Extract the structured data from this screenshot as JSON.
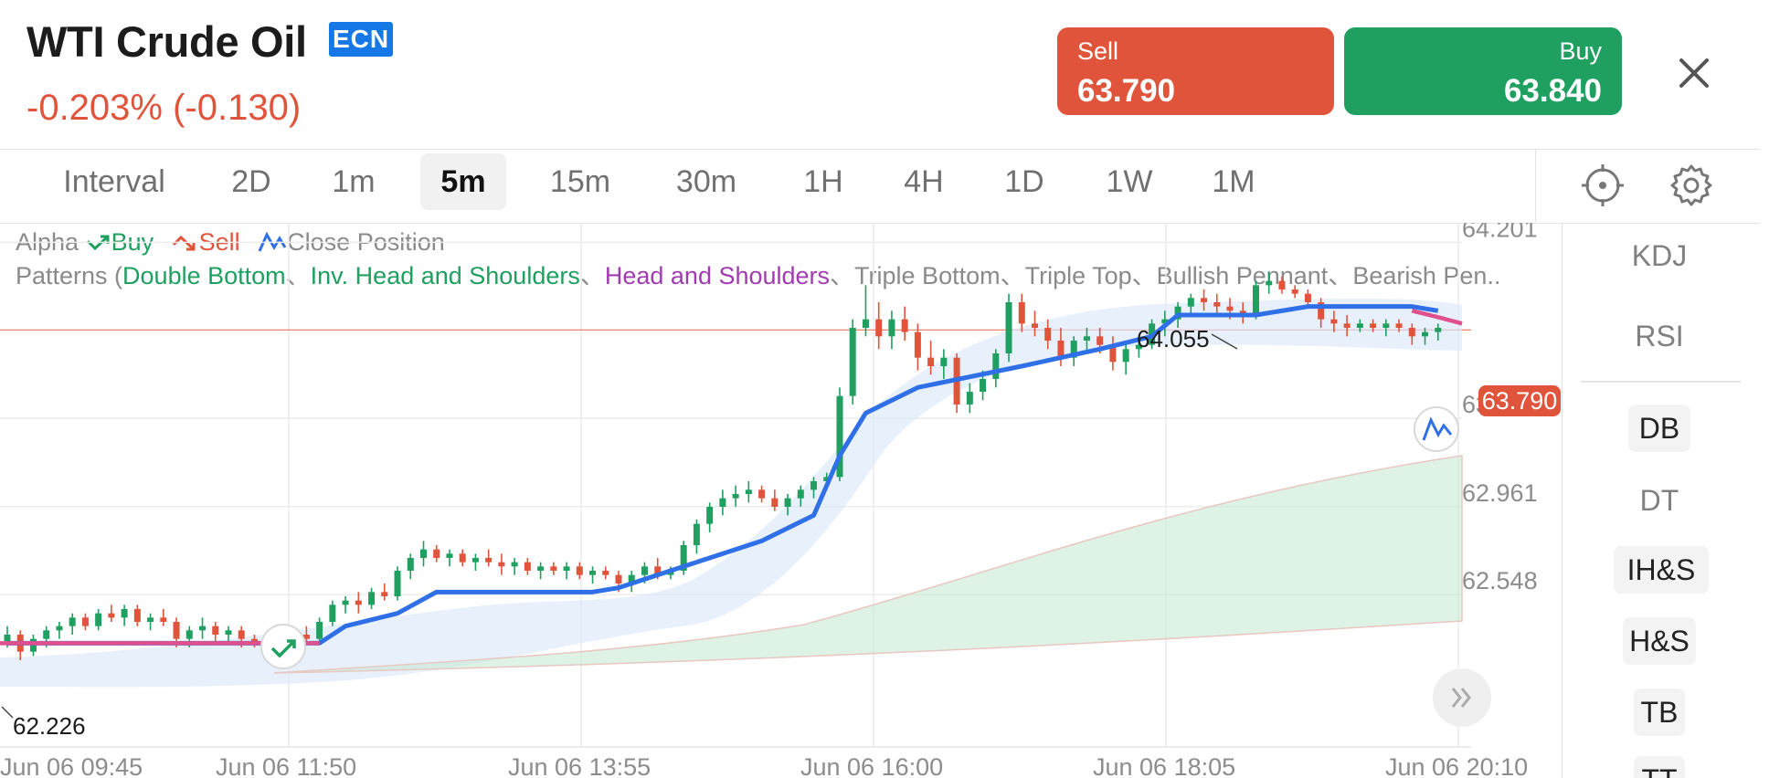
{
  "header": {
    "instrument": "WTI Crude Oil",
    "badge": "ECN",
    "change": "-0.203% (-0.130)",
    "sell": {
      "label": "Sell",
      "price": "63.790"
    },
    "buy": {
      "label": "Buy",
      "price": "63.840"
    }
  },
  "intervals": {
    "label": "Interval",
    "items": [
      "2D",
      "1m",
      "5m",
      "15m",
      "30m",
      "1H",
      "4H",
      "1D",
      "1W",
      "1M"
    ],
    "active": "5m"
  },
  "legend": {
    "alpha": "Alpha",
    "buy": "Buy",
    "sell": "Sell",
    "close_position": "Close Position",
    "patterns_prefix": "Patterns (",
    "double_bottom": "Double Bottom",
    "inv_head_shoulders": "Inv. Head and Shoulders",
    "head_shoulders": "Head and Shoulders",
    "triple_bottom": "Triple Bottom",
    "triple_top": "Triple Top",
    "bullish_pennant": "Bullish Pennant",
    "bearish_pennant": "Bearish Pen..",
    "sep": "、"
  },
  "side_panel": {
    "items": [
      "KDJ",
      "RSI",
      "DB",
      "DT",
      "IH&S",
      "H&S",
      "TB",
      "TT"
    ]
  },
  "colors": {
    "up": "#1fa060",
    "down": "#e0543c",
    "signal_line": "#2f6fe8",
    "accent_blue": "#1677e6",
    "pink_line": "#e0508c"
  },
  "icons": {
    "close": "close-icon",
    "locate": "crosshair-icon",
    "settings": "gear-icon",
    "scroll": "double-chevron-right-icon",
    "buy_marker": "buy-signal-icon",
    "close_marker": "close-position-icon"
  },
  "chart_data": {
    "type": "candlestick",
    "current_price": "63.790",
    "y_ticks": [
      "64.201",
      "63.375",
      "62.961",
      "62.548"
    ],
    "x_ticks": [
      "Jun 06 09:45",
      "Jun 06 11:50",
      "Jun 06 13:55",
      "Jun 06 16:00",
      "Jun 06 18:05",
      "Jun 06 20:10"
    ],
    "ylim": [
      62.15,
      64.25
    ],
    "high_label": "64.055",
    "low_label": "62.226",
    "candles": [
      [
        62.33,
        62.4,
        62.3,
        62.36
      ],
      [
        62.36,
        62.38,
        62.24,
        62.28
      ],
      [
        62.28,
        62.36,
        62.26,
        62.34
      ],
      [
        62.34,
        62.4,
        62.3,
        62.38
      ],
      [
        62.38,
        62.42,
        62.34,
        62.4
      ],
      [
        62.4,
        62.46,
        62.36,
        62.44
      ],
      [
        62.44,
        62.46,
        62.38,
        62.4
      ],
      [
        62.4,
        62.48,
        62.38,
        62.46
      ],
      [
        62.46,
        62.5,
        62.42,
        62.44
      ],
      [
        62.44,
        62.5,
        62.4,
        62.48
      ],
      [
        62.48,
        62.5,
        62.4,
        62.42
      ],
      [
        62.42,
        62.46,
        62.38,
        62.44
      ],
      [
        62.44,
        62.48,
        62.4,
        62.42
      ],
      [
        62.42,
        62.44,
        62.3,
        62.34
      ],
      [
        62.34,
        62.4,
        62.3,
        62.38
      ],
      [
        62.38,
        62.44,
        62.34,
        62.4
      ],
      [
        62.4,
        62.42,
        62.32,
        62.36
      ],
      [
        62.36,
        62.4,
        62.32,
        62.38
      ],
      [
        62.38,
        62.4,
        62.3,
        62.34
      ],
      [
        62.34,
        62.36,
        62.3,
        62.32
      ],
      [
        62.32,
        62.38,
        62.3,
        62.36
      ],
      [
        62.36,
        62.4,
        62.32,
        62.38
      ],
      [
        62.38,
        62.4,
        62.34,
        62.36
      ],
      [
        62.36,
        62.4,
        62.32,
        62.34
      ],
      [
        62.34,
        62.44,
        62.32,
        62.42
      ],
      [
        62.42,
        62.52,
        62.4,
        62.5
      ],
      [
        62.5,
        62.54,
        62.46,
        62.52
      ],
      [
        62.52,
        62.56,
        62.46,
        62.5
      ],
      [
        62.5,
        62.58,
        62.48,
        62.56
      ],
      [
        62.56,
        62.6,
        62.52,
        62.54
      ],
      [
        62.54,
        62.68,
        62.52,
        62.66
      ],
      [
        62.66,
        62.74,
        62.62,
        62.72
      ],
      [
        62.72,
        62.8,
        62.68,
        62.76
      ],
      [
        62.76,
        62.78,
        62.7,
        62.72
      ],
      [
        62.72,
        62.76,
        62.68,
        62.74
      ],
      [
        62.74,
        62.76,
        62.68,
        62.7
      ],
      [
        62.7,
        62.74,
        62.66,
        62.72
      ],
      [
        62.72,
        62.76,
        62.68,
        62.7
      ],
      [
        62.7,
        62.74,
        62.64,
        62.68
      ],
      [
        62.68,
        62.72,
        62.64,
        62.7
      ],
      [
        62.7,
        62.72,
        62.64,
        62.66
      ],
      [
        62.66,
        62.7,
        62.62,
        62.68
      ],
      [
        62.68,
        62.7,
        62.64,
        62.66
      ],
      [
        62.66,
        62.7,
        62.62,
        62.68
      ],
      [
        62.68,
        62.7,
        62.62,
        62.64
      ],
      [
        62.64,
        62.68,
        62.6,
        62.66
      ],
      [
        62.66,
        62.68,
        62.62,
        62.64
      ],
      [
        62.64,
        62.66,
        62.56,
        62.6
      ],
      [
        62.6,
        62.66,
        62.56,
        62.64
      ],
      [
        62.64,
        62.7,
        62.6,
        62.68
      ],
      [
        62.68,
        62.72,
        62.62,
        62.64
      ],
      [
        62.64,
        62.68,
        62.62,
        62.66
      ],
      [
        62.66,
        62.8,
        62.64,
        62.78
      ],
      [
        62.78,
        62.9,
        62.74,
        62.88
      ],
      [
        62.88,
        62.98,
        62.84,
        62.96
      ],
      [
        62.96,
        63.04,
        62.92,
        63.0
      ],
      [
        63.0,
        63.06,
        62.96,
        63.02
      ],
      [
        63.02,
        63.08,
        62.98,
        63.04
      ],
      [
        63.04,
        63.06,
        62.98,
        63.0
      ],
      [
        63.0,
        63.04,
        62.94,
        62.96
      ],
      [
        62.96,
        63.02,
        62.92,
        63.0
      ],
      [
        63.0,
        63.06,
        62.96,
        63.04
      ],
      [
        63.04,
        63.1,
        63.0,
        63.08
      ],
      [
        63.08,
        63.12,
        63.04,
        63.1
      ],
      [
        63.1,
        63.52,
        63.08,
        63.48
      ],
      [
        63.48,
        63.84,
        63.44,
        63.8
      ],
      [
        63.8,
        64.0,
        63.76,
        63.84
      ],
      [
        63.84,
        63.92,
        63.7,
        63.76
      ],
      [
        63.76,
        63.88,
        63.7,
        63.84
      ],
      [
        63.84,
        63.9,
        63.74,
        63.78
      ],
      [
        63.78,
        63.82,
        63.6,
        63.66
      ],
      [
        63.66,
        63.74,
        63.58,
        63.62
      ],
      [
        63.62,
        63.7,
        63.56,
        63.66
      ],
      [
        63.66,
        63.68,
        63.4,
        63.44
      ],
      [
        63.44,
        63.54,
        63.4,
        63.5
      ],
      [
        63.5,
        63.6,
        63.46,
        63.56
      ],
      [
        63.56,
        63.7,
        63.52,
        63.68
      ],
      [
        63.68,
        63.96,
        63.64,
        63.92
      ],
      [
        63.92,
        63.96,
        63.78,
        63.82
      ],
      [
        63.82,
        63.88,
        63.76,
        63.8
      ],
      [
        63.8,
        63.84,
        63.7,
        63.74
      ],
      [
        63.74,
        63.8,
        63.62,
        63.66
      ],
      [
        63.66,
        63.76,
        63.62,
        63.74
      ],
      [
        63.74,
        63.8,
        63.68,
        63.76
      ],
      [
        63.76,
        63.8,
        63.68,
        63.72
      ],
      [
        63.72,
        63.76,
        63.6,
        63.64
      ],
      [
        63.64,
        63.74,
        63.58,
        63.7
      ],
      [
        63.7,
        63.76,
        63.66,
        63.72
      ],
      [
        63.72,
        63.84,
        63.7,
        63.82
      ],
      [
        63.82,
        63.88,
        63.76,
        63.84
      ],
      [
        63.84,
        63.92,
        63.8,
        63.9
      ],
      [
        63.9,
        63.96,
        63.86,
        63.94
      ],
      [
        63.94,
        63.98,
        63.88,
        63.92
      ],
      [
        63.92,
        63.96,
        63.86,
        63.9
      ],
      [
        63.9,
        63.94,
        63.84,
        63.88
      ],
      [
        63.88,
        63.92,
        63.82,
        63.86
      ],
      [
        63.86,
        64.02,
        63.84,
        64.0
      ],
      [
        64.0,
        64.06,
        63.96,
        64.02
      ],
      [
        64.02,
        64.04,
        63.96,
        63.98
      ],
      [
        63.98,
        64.0,
        63.94,
        63.96
      ],
      [
        63.96,
        63.98,
        63.9,
        63.92
      ],
      [
        63.92,
        63.94,
        63.8,
        63.84
      ],
      [
        63.84,
        63.88,
        63.78,
        63.82
      ],
      [
        63.82,
        63.86,
        63.76,
        63.8
      ],
      [
        63.8,
        63.84,
        63.78,
        63.82
      ],
      [
        63.82,
        63.84,
        63.78,
        63.8
      ],
      [
        63.8,
        63.84,
        63.76,
        63.82
      ],
      [
        63.82,
        63.84,
        63.78,
        63.8
      ],
      [
        63.8,
        63.82,
        63.72,
        63.76
      ],
      [
        63.76,
        63.8,
        63.72,
        63.78
      ],
      [
        63.78,
        63.82,
        63.74,
        63.8
      ]
    ],
    "signal_line": [
      [
        0,
        62.32
      ],
      [
        24,
        62.32
      ],
      [
        26,
        62.4
      ],
      [
        30,
        62.46
      ],
      [
        33,
        62.56
      ],
      [
        45,
        62.56
      ],
      [
        47,
        62.58
      ],
      [
        50,
        62.64
      ],
      [
        54,
        62.72
      ],
      [
        58,
        62.8
      ],
      [
        62,
        62.92
      ],
      [
        64,
        63.2
      ],
      [
        66,
        63.4
      ],
      [
        70,
        63.52
      ],
      [
        78,
        63.62
      ],
      [
        84,
        63.7
      ],
      [
        88,
        63.76
      ],
      [
        90,
        63.86
      ],
      [
        96,
        63.86
      ],
      [
        100,
        63.9
      ],
      [
        108,
        63.9
      ],
      [
        110,
        63.88
      ]
    ]
  }
}
